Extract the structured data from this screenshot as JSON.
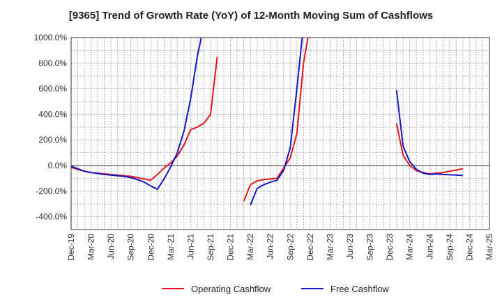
{
  "chart_data": {
    "type": "line",
    "title": "[9365]  Trend of Growth Rate (YoY) of 12-Month Moving Sum of Cashflows",
    "xlabel": "",
    "ylabel": "",
    "ylim": [
      -500,
      1000
    ],
    "grid": true,
    "legend_position": "bottom-center",
    "x_tick_labels": [
      "Dec-19",
      "Mar-20",
      "Jun-20",
      "Sep-20",
      "Dec-20",
      "Mar-21",
      "Jun-21",
      "Sep-21",
      "Dec-21",
      "Mar-22",
      "Jun-22",
      "Sep-22",
      "Dec-22",
      "Mar-23",
      "Jun-23",
      "Sep-23",
      "Dec-23",
      "Mar-24",
      "Jun-24",
      "Sep-24",
      "Dec-24",
      "Mar-25"
    ],
    "y_ticks": [
      1000,
      800,
      600,
      400,
      200,
      0,
      -200,
      -400
    ],
    "y_tick_labels": [
      "1000.0%",
      "800.0%",
      "600.0%",
      "400.0%",
      "200.0%",
      "0.0%",
      "-200.0%",
      "-400.0%"
    ],
    "series": [
      {
        "name": "Operating Cashflow",
        "color": "#e8141a",
        "values": [
          -15,
          -30,
          -45,
          -55,
          -60,
          -65,
          -70,
          -75,
          -80,
          -85,
          -95,
          -105,
          -115,
          -70,
          -20,
          20,
          75,
          160,
          280,
          300,
          330,
          400,
          850,
          null,
          null,
          null,
          -280,
          -150,
          -120,
          -110,
          -105,
          -100,
          -20,
          60,
          250,
          800,
          1100,
          null,
          null,
          null,
          null,
          null,
          null,
          null,
          null,
          null,
          null,
          null,
          null,
          330,
          80,
          0,
          -40,
          -55,
          -65,
          -60,
          -55,
          -45,
          -35,
          -25
        ]
      },
      {
        "name": "Free Cashflow",
        "color": "#1414c8",
        "values": [
          -5,
          -25,
          -45,
          -55,
          -62,
          -70,
          -75,
          -80,
          -85,
          -95,
          -110,
          -130,
          -160,
          -185,
          -105,
          -10,
          100,
          270,
          520,
          850,
          1100,
          null,
          null,
          null,
          null,
          null,
          null,
          -310,
          -180,
          -150,
          -130,
          -115,
          -40,
          140,
          600,
          1100,
          null,
          null,
          null,
          null,
          null,
          null,
          null,
          null,
          null,
          null,
          null,
          null,
          null,
          590,
          150,
          30,
          -30,
          -60,
          -70,
          -65,
          -70,
          -72,
          -75,
          -78
        ]
      }
    ]
  }
}
